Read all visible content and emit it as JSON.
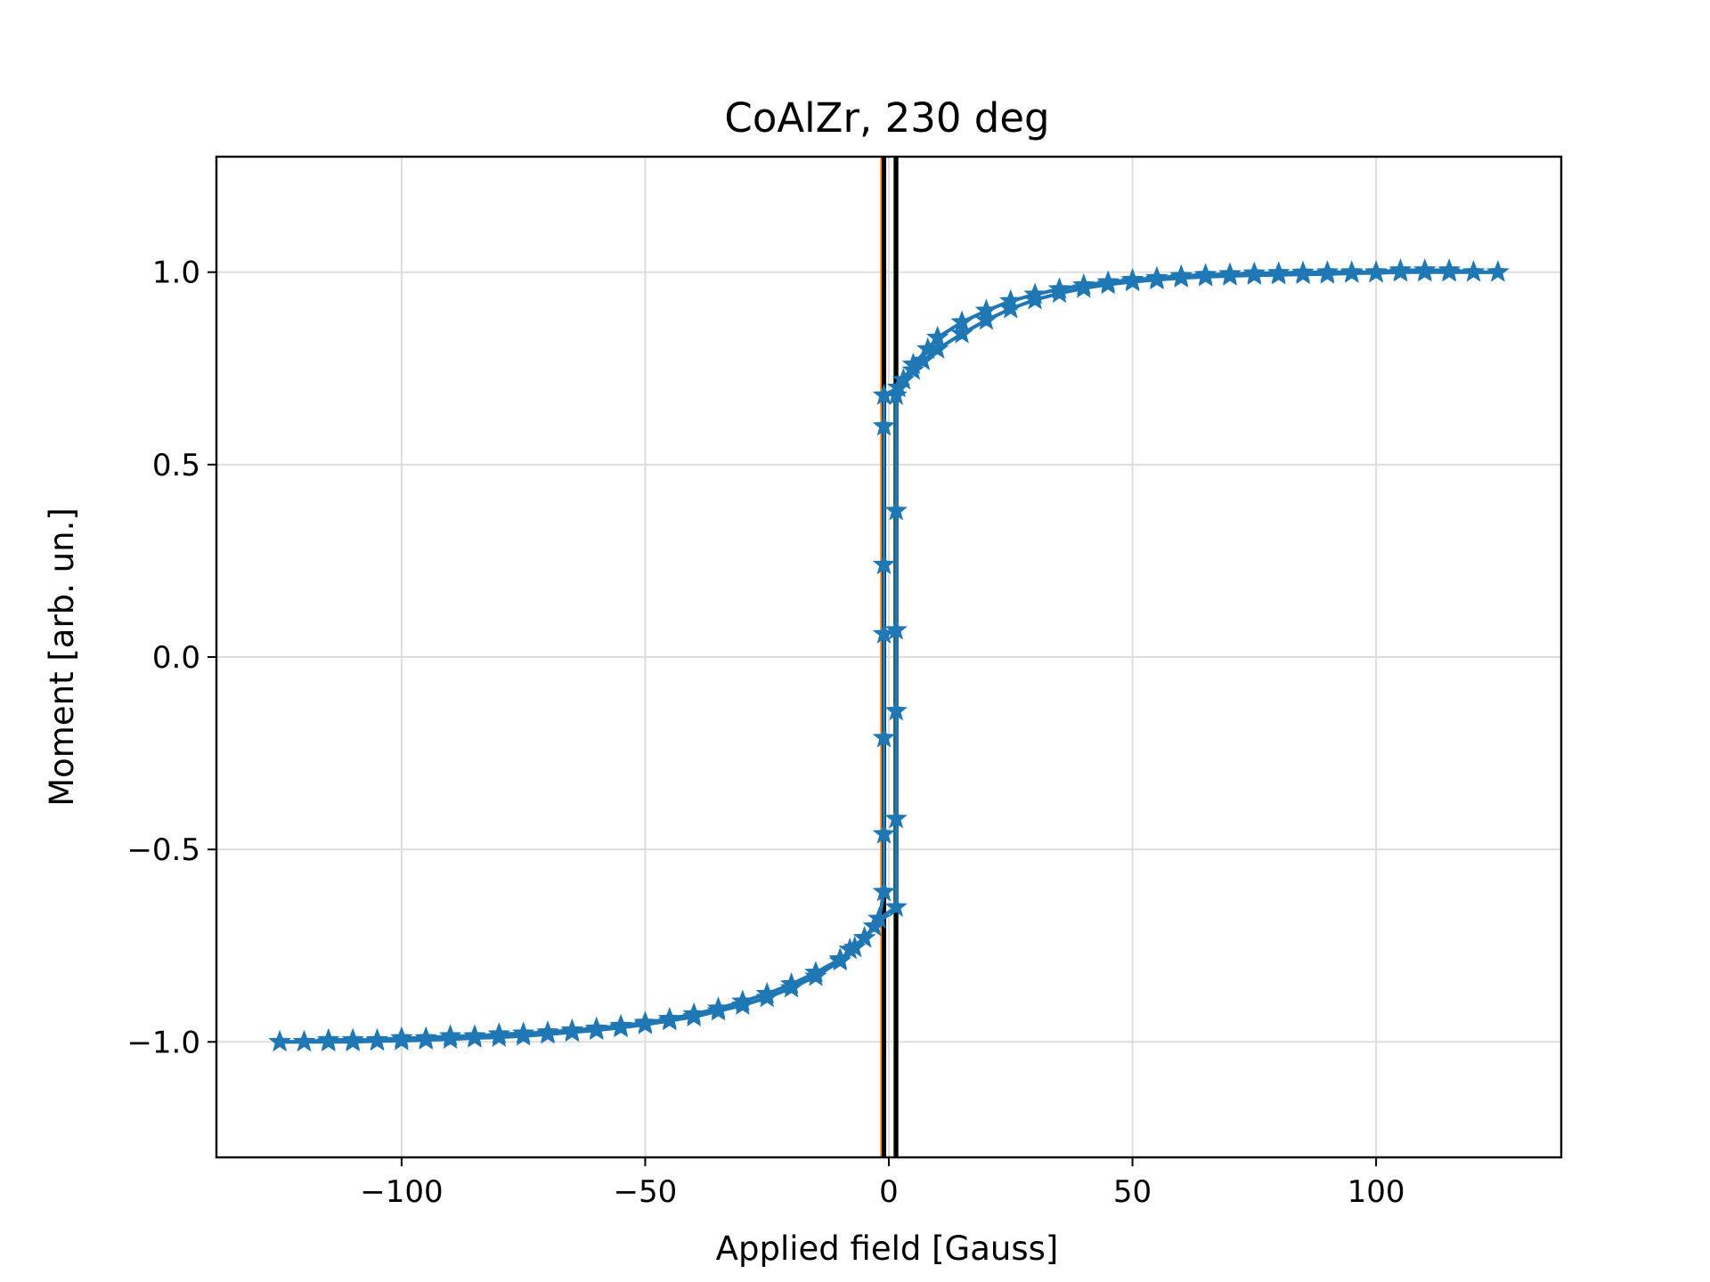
{
  "chart_data": {
    "type": "scatter",
    "title": "CoAlZr, 230 deg",
    "xlabel": "Applied field [Gauss]",
    "ylabel": "Moment [arb. un.]",
    "xlim": [
      -138,
      138
    ],
    "ylim": [
      -1.3,
      1.3
    ],
    "xticks": [
      -100,
      -50,
      0,
      50,
      100
    ],
    "yticks": [
      -1.0,
      -0.5,
      0.0,
      0.5,
      1.0
    ],
    "xtick_labels": [
      "−100",
      "−50",
      "0",
      "50",
      "100"
    ],
    "ytick_labels": [
      "−1.0",
      "−0.5",
      "0.0",
      "0.5",
      "1.0"
    ],
    "grid": true,
    "marker": "star",
    "colors": {
      "data": "#1f77b4",
      "vline_black": "#000000",
      "vline_orange": "#ff7f0e",
      "vline_green": "#2ca02c",
      "grid": "#dddddd"
    },
    "vertical_lines": [
      {
        "x": -1.5,
        "color": "#ff7f0e"
      },
      {
        "x": -1.0,
        "color": "#000000"
      },
      {
        "x": 1.2,
        "color": "#2ca02c"
      },
      {
        "x": 1.5,
        "color": "#000000"
      }
    ],
    "series": [
      {
        "branch": "sweep-up",
        "x": [
          -125,
          -120,
          -115,
          -110,
          -105,
          -100,
          -95,
          -90,
          -85,
          -80,
          -75,
          -70,
          -65,
          -60,
          -55,
          -50,
          -45,
          -40,
          -35,
          -30,
          -25,
          -20,
          -15,
          -10,
          -7,
          -5,
          -3,
          -2,
          1.5,
          1.5,
          1.5,
          1.5,
          1.5,
          1.5,
          2,
          3,
          5,
          8,
          10,
          15,
          20,
          25,
          30,
          35,
          40,
          45,
          50,
          55,
          60,
          65,
          70,
          75,
          80,
          85,
          90,
          95,
          100,
          105,
          110,
          115,
          120,
          125
        ],
        "y": [
          -1.0,
          -1.0,
          -0.995,
          -0.995,
          -0.995,
          -0.99,
          -0.99,
          -0.985,
          -0.985,
          -0.98,
          -0.978,
          -0.975,
          -0.97,
          -0.965,
          -0.958,
          -0.95,
          -0.94,
          -0.928,
          -0.913,
          -0.895,
          -0.875,
          -0.85,
          -0.82,
          -0.785,
          -0.755,
          -0.73,
          -0.7,
          -0.68,
          -0.65,
          -0.42,
          -0.14,
          0.07,
          0.38,
          0.68,
          0.7,
          0.72,
          0.76,
          0.8,
          0.83,
          0.87,
          0.9,
          0.925,
          0.942,
          0.956,
          0.966,
          0.974,
          0.98,
          0.985,
          0.99,
          0.993,
          0.995,
          0.997,
          0.998,
          0.999,
          1.0,
          1.0,
          1.0,
          1.005,
          1.005,
          1.005,
          1.0,
          1.0
        ]
      },
      {
        "branch": "sweep-down",
        "x": [
          125,
          120,
          115,
          110,
          105,
          100,
          95,
          90,
          85,
          80,
          75,
          70,
          65,
          60,
          55,
          50,
          45,
          40,
          35,
          30,
          25,
          20,
          15,
          10,
          7,
          5,
          3,
          2,
          -1,
          -1,
          -1,
          -1,
          -1,
          -1,
          -1,
          -2,
          -3,
          -5,
          -8,
          -10,
          -15,
          -20,
          -25,
          -30,
          -35,
          -40,
          -45,
          -50,
          -55,
          -60,
          -65,
          -70,
          -75,
          -80,
          -85,
          -90,
          -95,
          -100,
          -105,
          -110,
          -115,
          -120,
          -125
        ],
        "y": [
          1.0,
          1.0,
          1.0,
          1.0,
          1.0,
          0.998,
          0.997,
          0.995,
          0.994,
          0.993,
          0.992,
          0.99,
          0.988,
          0.985,
          0.98,
          0.975,
          0.968,
          0.958,
          0.945,
          0.928,
          0.905,
          0.875,
          0.84,
          0.8,
          0.77,
          0.745,
          0.72,
          0.7,
          0.68,
          0.6,
          0.24,
          0.06,
          -0.21,
          -0.46,
          -0.61,
          -0.68,
          -0.7,
          -0.73,
          -0.76,
          -0.79,
          -0.83,
          -0.86,
          -0.885,
          -0.905,
          -0.92,
          -0.935,
          -0.945,
          -0.955,
          -0.963,
          -0.97,
          -0.975,
          -0.98,
          -0.985,
          -0.988,
          -0.99,
          -0.993,
          -0.995,
          -0.997,
          -0.998,
          -1.0,
          -1.0,
          -1.0,
          -1.0
        ]
      }
    ]
  }
}
